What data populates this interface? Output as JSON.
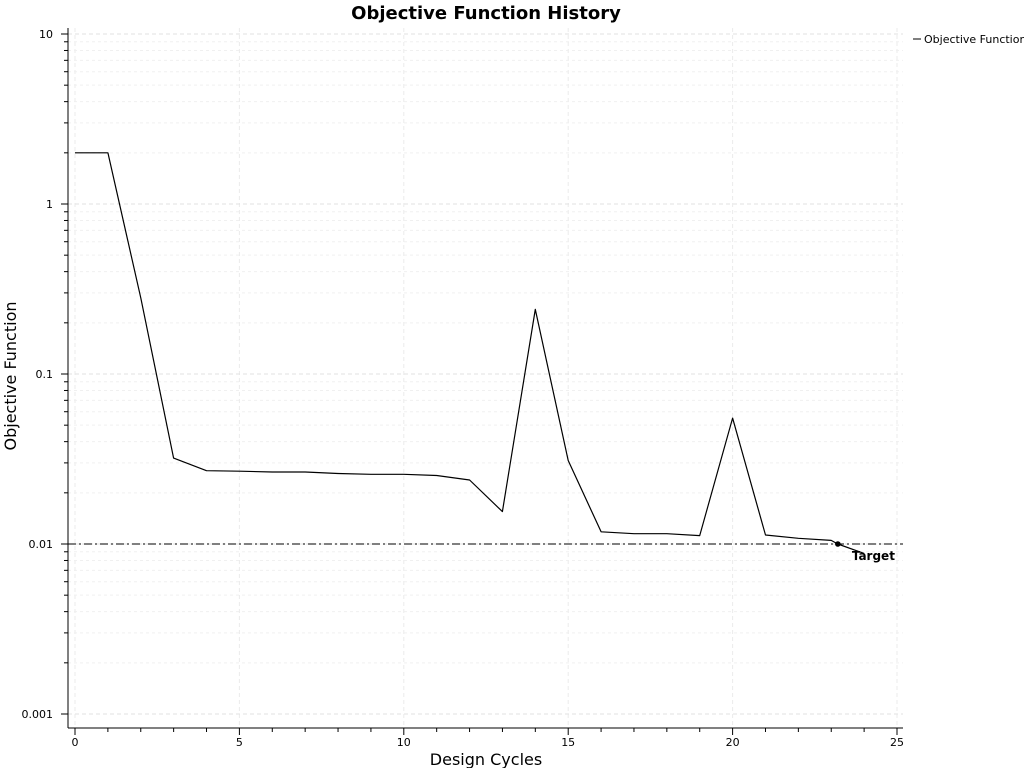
{
  "chart_data": {
    "type": "line",
    "title": "Objective Function History",
    "xlabel": "Design Cycles",
    "ylabel": "Objective Function",
    "xlim": [
      0,
      25
    ],
    "ylim": [
      0.001,
      10
    ],
    "yscale": "log",
    "grid": true,
    "legend_position": "top-right",
    "x_ticks": [
      0,
      5,
      10,
      15,
      20,
      25
    ],
    "x_tick_labels": [
      "0",
      "5",
      "10",
      "15",
      "20",
      "25"
    ],
    "y_ticks": [
      0.001,
      0.01,
      0.1,
      1,
      10
    ],
    "y_tick_labels": [
      "0.001",
      "0.01",
      "0.1",
      "1",
      "10"
    ],
    "series": [
      {
        "name": "Objective Function",
        "color": "#000000",
        "x": [
          0,
          1,
          2,
          3,
          4,
          5,
          6,
          7,
          8,
          9,
          10,
          11,
          12,
          13,
          14,
          15,
          16,
          17,
          18,
          19,
          20,
          21,
          22,
          23,
          23.2,
          24
        ],
        "y": [
          2.0,
          2.0,
          0.28,
          0.032,
          0.027,
          0.0268,
          0.0265,
          0.0265,
          0.026,
          0.0257,
          0.0257,
          0.0253,
          0.0238,
          0.0155,
          0.24,
          0.031,
          0.0118,
          0.0115,
          0.0115,
          0.0112,
          0.055,
          0.0113,
          0.0108,
          0.0105,
          0.01,
          0.0088
        ]
      }
    ],
    "reference_line": {
      "y": 0.01,
      "style": "dash-dot",
      "color": "#000000"
    },
    "annotations": [
      {
        "text": "Target",
        "x": 23.2,
        "y": 0.01
      }
    ]
  }
}
